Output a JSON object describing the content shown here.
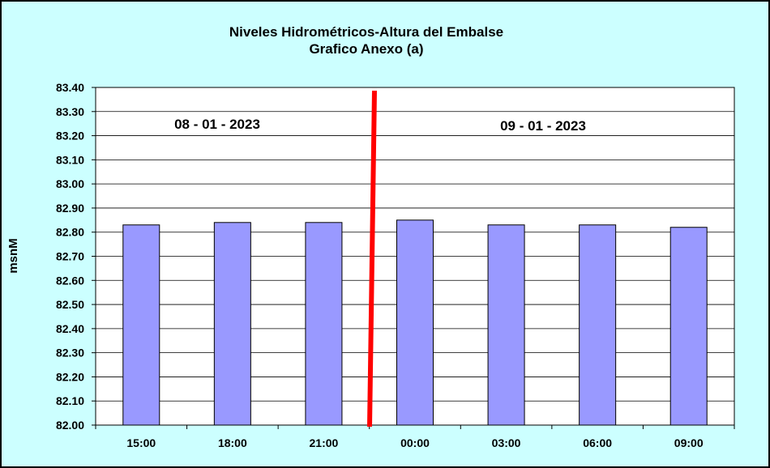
{
  "chart_data": {
    "type": "bar",
    "title": "Niveles Hidrométricos-Altura del Embalse",
    "subtitle": "Grafico Anexo (a)",
    "xlabel": "",
    "ylabel": "msnM",
    "categories": [
      "15:00",
      "18:00",
      "21:00",
      "00:00",
      "03:00",
      "06:00",
      "09:00"
    ],
    "values": [
      82.83,
      82.84,
      82.84,
      82.85,
      82.83,
      82.83,
      82.82
    ],
    "ylim": [
      82.0,
      83.4
    ],
    "yticks": [
      "82.00",
      "82.10",
      "82.20",
      "82.30",
      "82.40",
      "82.50",
      "82.60",
      "82.70",
      "82.80",
      "82.90",
      "83.00",
      "83.10",
      "83.20",
      "83.30",
      "83.40"
    ],
    "grid": true,
    "legend": "none",
    "annotations": [
      {
        "text": "08 - 01 - 2023"
      },
      {
        "text": "09 - 01 - 2023"
      }
    ],
    "colors": {
      "bar_fill": "#9999ff",
      "bar_stroke": "#000000",
      "divider": "#ff0000",
      "background": "#ccffff",
      "plot_background": "#ffffff"
    }
  }
}
